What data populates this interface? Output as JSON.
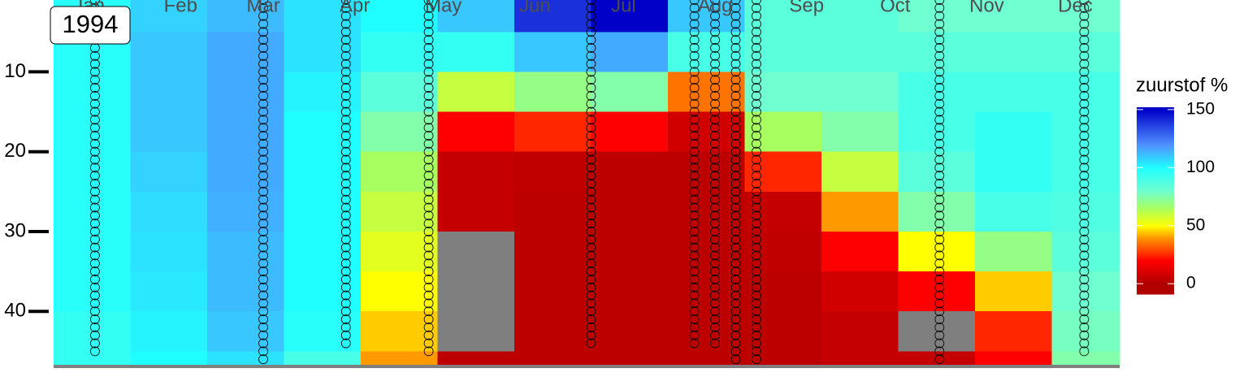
{
  "chart_data": {
    "type": "heatmap",
    "title": "1994",
    "legend_title": "zuurstof %",
    "x_bins": [
      3,
      29,
      55,
      81,
      107,
      133,
      159,
      185,
      211,
      237,
      263,
      289,
      315,
      341,
      364
    ],
    "y_bins": [
      1,
      5,
      10,
      15,
      20,
      25,
      30,
      35,
      40,
      45,
      47
    ],
    "values": [
      [
        98,
        108,
        112,
        105,
        100,
        110,
        140,
        150,
        110,
        85,
        85,
        80,
        80,
        80
      ],
      [
        98,
        110,
        115,
        105,
        95,
        95,
        110,
        115,
        90,
        85,
        85,
        85,
        85,
        85
      ],
      [
        98,
        110,
        115,
        102,
        85,
        60,
        70,
        75,
        35,
        80,
        80,
        90,
        90,
        90
      ],
      [
        98,
        110,
        115,
        100,
        75,
        20,
        25,
        20,
        8,
        65,
        75,
        90,
        95,
        90
      ],
      [
        98,
        108,
        115,
        100,
        65,
        5,
        4,
        3,
        3,
        25,
        60,
        85,
        95,
        90
      ],
      [
        98,
        106,
        114,
        100,
        60,
        5,
        3,
        3,
        3,
        5,
        40,
        75,
        90,
        88
      ],
      [
        98,
        105,
        112,
        100,
        55,
        null,
        3,
        3,
        3,
        4,
        20,
        50,
        70,
        85
      ],
      [
        98,
        104,
        112,
        100,
        50,
        null,
        3,
        3,
        3,
        3,
        8,
        20,
        45,
        80
      ],
      [
        95,
        102,
        110,
        98,
        45,
        null,
        3,
        3,
        3,
        3,
        5,
        null,
        25,
        78
      ],
      [
        95,
        100,
        105,
        90,
        40,
        3,
        3,
        3,
        3,
        3,
        5,
        5,
        20,
        75
      ]
    ],
    "colorscale": [
      [
        0,
        "#b00000"
      ],
      [
        20,
        "#ff0000"
      ],
      [
        40,
        "#ff9900"
      ],
      [
        50,
        "#ffff00"
      ],
      [
        65,
        "#a8ff60"
      ],
      [
        80,
        "#70ffd0"
      ],
      [
        100,
        "#20ffff"
      ],
      [
        120,
        "#4f8fff"
      ],
      [
        150,
        "#0000c8"
      ]
    ],
    "na_color": "#7f7f7f",
    "clim": [
      -9,
      152
    ],
    "cticks": [
      0,
      50,
      100,
      150
    ],
    "xlim": [
      3,
      364
    ],
    "xticks": [
      {
        "value": 15,
        "label": "Jan"
      },
      {
        "value": 46,
        "label": "Feb"
      },
      {
        "value": 74,
        "label": "Mar"
      },
      {
        "value": 105,
        "label": "Apr"
      },
      {
        "value": 135,
        "label": "May"
      },
      {
        "value": 166,
        "label": "Jun"
      },
      {
        "value": 196,
        "label": "Jul"
      },
      {
        "value": 227,
        "label": "Aug"
      },
      {
        "value": 258,
        "label": "Sep"
      },
      {
        "value": 288,
        "label": "Oct"
      },
      {
        "value": 319,
        "label": "Nov"
      },
      {
        "value": 349,
        "label": "Dec"
      }
    ],
    "ylim": [
      1,
      47
    ],
    "yticks": [
      10,
      20,
      30,
      40
    ],
    "sample_depths": [
      1,
      2,
      3,
      4,
      5,
      6,
      7,
      8,
      9,
      10,
      11,
      12,
      13,
      14,
      15,
      16,
      17,
      18,
      19,
      20,
      21,
      22,
      23,
      24,
      25,
      26,
      27,
      28,
      29,
      30,
      31,
      32,
      33,
      34,
      35,
      36,
      37,
      38,
      39,
      40,
      41,
      42,
      43,
      44,
      45,
      46
    ],
    "profiles": [
      {
        "x": 17,
        "max_depth": 45
      },
      {
        "x": 74,
        "max_depth": 46
      },
      {
        "x": 102,
        "max_depth": 44
      },
      {
        "x": 130,
        "max_depth": 45
      },
      {
        "x": 185,
        "max_depth": 44
      },
      {
        "x": 220,
        "max_depth": 44
      },
      {
        "x": 227,
        "max_depth": 44
      },
      {
        "x": 234,
        "max_depth": 46
      },
      {
        "x": 241,
        "max_depth": 46
      },
      {
        "x": 303,
        "max_depth": 46
      },
      {
        "x": 352,
        "max_depth": 45
      }
    ]
  }
}
